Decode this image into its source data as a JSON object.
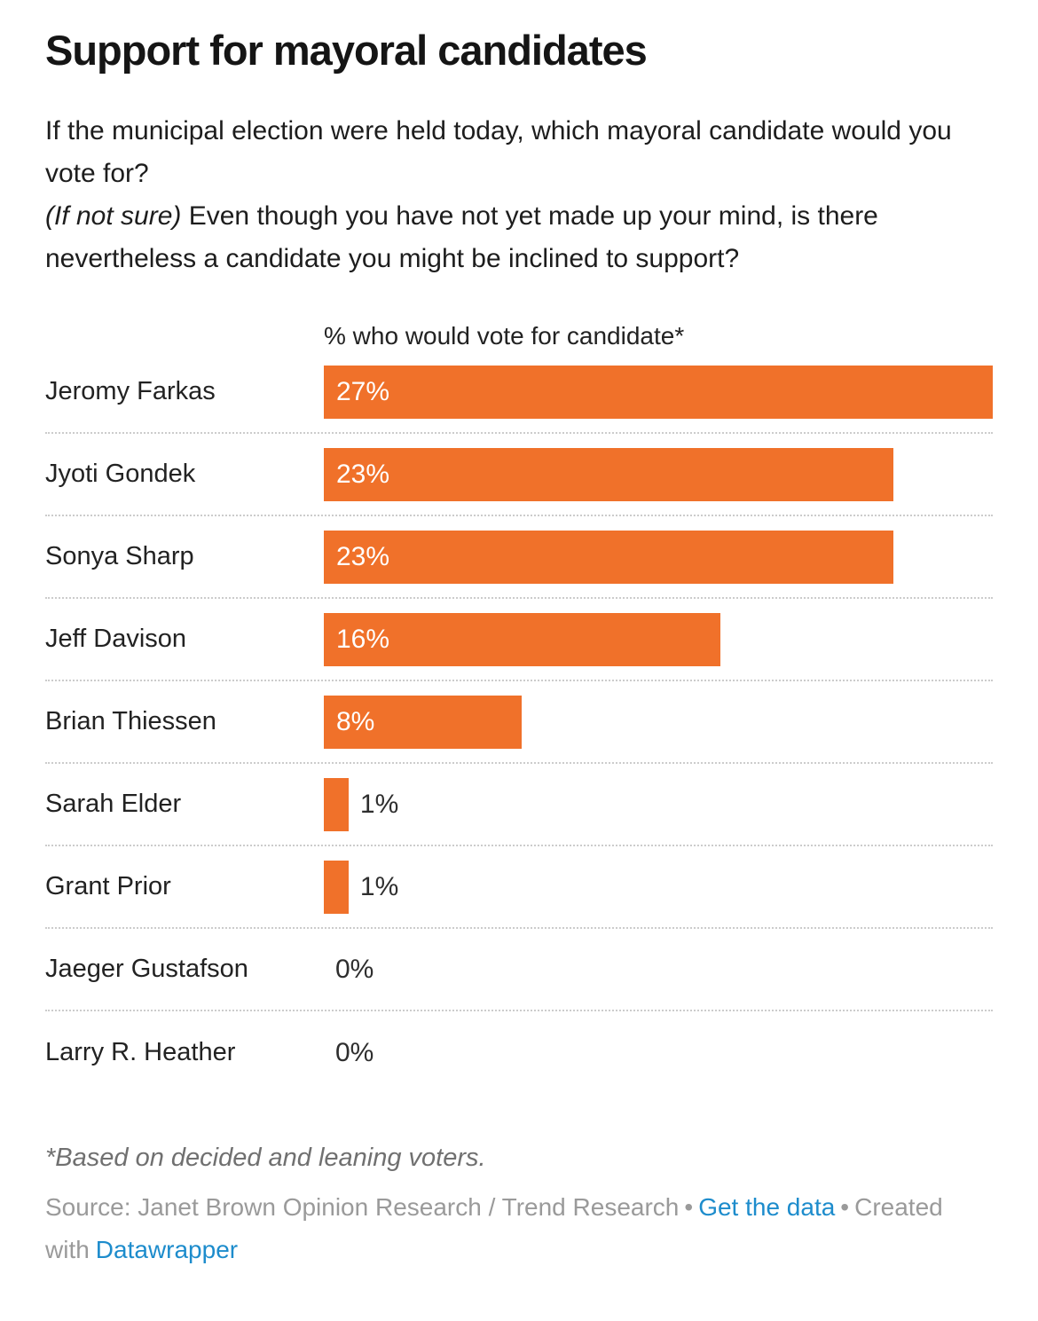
{
  "header": {
    "title": "Support for mayoral candidates",
    "question": "If the municipal election were held today, which mayoral candidate would you vote for?",
    "note_italic": "(If not sure)",
    "note_rest": " Even though you have not yet made up your mind, is there nevertheless a candidate you might be inclined to support?"
  },
  "chart_data": {
    "type": "bar",
    "orientation": "horizontal",
    "axis_label": "% who would vote for candidate*",
    "categories": [
      "Jeromy Farkas",
      "Jyoti Gondek",
      "Sonya Sharp",
      "Jeff Davison",
      "Brian Thiessen",
      "Sarah Elder",
      "Grant Prior",
      "Jaeger Gustafson",
      "Larry R. Heather"
    ],
    "values": [
      27,
      23,
      23,
      16,
      8,
      1,
      1,
      0,
      0
    ],
    "value_labels": [
      "27%",
      "23%",
      "23%",
      "16%",
      "8%",
      "1%",
      "1%",
      "0%",
      "0%"
    ],
    "xlim": [
      0,
      27
    ],
    "grid": "dotted row separators",
    "legend": "none",
    "bar_color": "#f0712a",
    "inside_label_color": "#ffffff",
    "outside_label_color": "#2e2e2e"
  },
  "footer": {
    "footnote": "*Based on decided and leaning voters.",
    "source_text": "Source: Janet Brown Opinion Research / Trend Research",
    "bullet": "•",
    "link_get_data": "Get the data",
    "created_with": "Created with",
    "link_datawrapper": "Datawrapper"
  },
  "colors": {
    "bar": "#f0712a",
    "link": "#1d8ccc",
    "separator": "#cccccc"
  }
}
